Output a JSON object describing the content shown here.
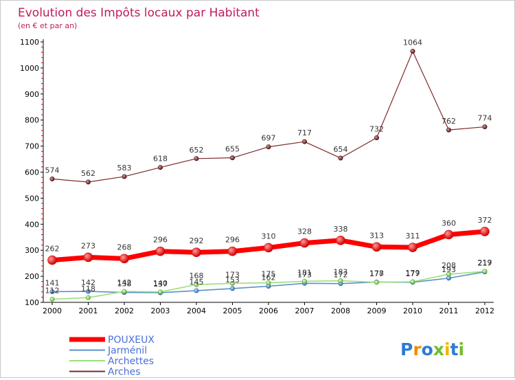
{
  "chart_data": {
    "type": "line",
    "title": "Evolution des Impôts locaux par Habitant",
    "subtitle": "(en € et par an)",
    "xlabel": "",
    "ylabel": "",
    "ylim": [
      100,
      1100
    ],
    "yticks": [
      "100",
      "200",
      "300",
      "400",
      "500",
      "600",
      "700",
      "800",
      "900",
      "1000",
      "1100"
    ],
    "x": [
      "2000",
      "2001",
      "2002",
      "2003",
      "2004",
      "2005",
      "2006",
      "2007",
      "2008",
      "2009",
      "2010",
      "2011",
      "2012"
    ],
    "grid": false,
    "legend": "bottom-left",
    "series": [
      {
        "name": "Arches",
        "color": "#7b2a2a",
        "values": [
          574,
          562,
          583,
          618,
          652,
          655,
          697,
          717,
          654,
          732,
          1064,
          762,
          774
        ]
      },
      {
        "name": "Jarménil",
        "color": "#5b8fc9",
        "values": [
          141,
          142,
          138,
          137,
          145,
          153,
          162,
          173,
          172,
          178,
          177,
          193,
          217
        ]
      },
      {
        "name": "Archettes",
        "color": "#9be07a",
        "values": [
          112,
          118,
          142,
          140,
          168,
          173,
          175,
          181,
          183,
          177,
          179,
          208,
          219
        ]
      },
      {
        "name": "POUXEUX",
        "color": "#ff0000",
        "values": [
          262,
          273,
          268,
          296,
          292,
          296,
          310,
          328,
          338,
          313,
          311,
          360,
          372
        ]
      }
    ]
  },
  "legend_order": [
    "POUXEUX",
    "Jarménil",
    "Archettes",
    "Arches"
  ],
  "logo": {
    "text": "Proxiti"
  }
}
